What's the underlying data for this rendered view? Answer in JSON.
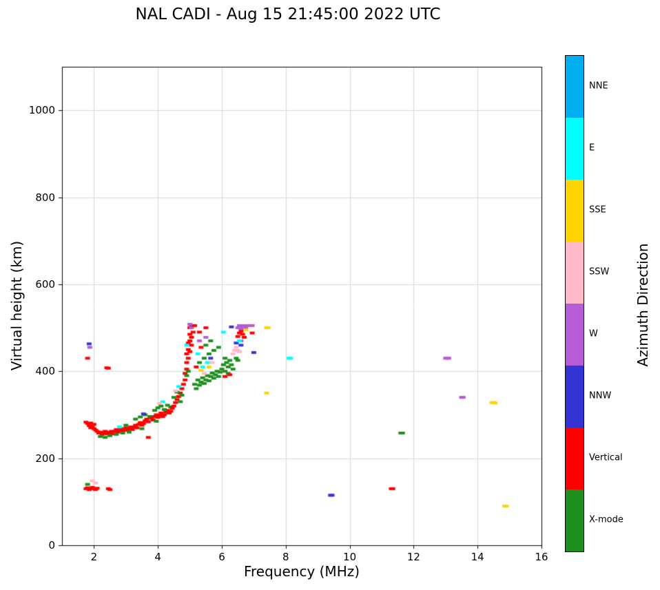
{
  "chart_data": {
    "type": "scatter",
    "title": "NAL CADI - Aug 15 21:45:00 2022 UTC",
    "xlabel": "Frequency (MHz)",
    "ylabel": "Virtual height (km)",
    "colorbar_title": "Azimuth Direction",
    "xlim": [
      1,
      16
    ],
    "ylim": [
      0,
      1100
    ],
    "xticks": [
      2,
      4,
      6,
      8,
      10,
      12,
      14,
      16
    ],
    "yticks": [
      0,
      200,
      400,
      600,
      800,
      1000
    ],
    "grid": true,
    "grid_color": "#d9d9d9",
    "frame_color": "#000000",
    "legend_position": "right-colorbar",
    "categories": [
      {
        "key": "NNE",
        "color": "#00aeef"
      },
      {
        "key": "E",
        "color": "#00ffff"
      },
      {
        "key": "SSE",
        "color": "#ffd400"
      },
      {
        "key": "SSW",
        "color": "#ffb9c9"
      },
      {
        "key": "W",
        "color": "#b55cd6"
      },
      {
        "key": "NNW",
        "color": "#3434d4"
      },
      {
        "key": "Vertical",
        "color": "#fe0000"
      },
      {
        "key": "X-mode",
        "color": "#1e8f1e"
      }
    ],
    "point_fields": [
      "frequency_mhz",
      "virtual_height_km",
      "category_index"
    ],
    "points": [
      [
        1.75,
        283,
        6
      ],
      [
        1.8,
        280,
        6
      ],
      [
        1.85,
        275,
        6
      ],
      [
        1.9,
        270,
        6
      ],
      [
        1.9,
        281,
        6
      ],
      [
        1.95,
        272,
        6
      ],
      [
        2.0,
        268,
        6
      ],
      [
        2.0,
        278,
        6
      ],
      [
        2.05,
        265,
        6
      ],
      [
        2.1,
        262,
        6
      ],
      [
        2.15,
        258,
        6
      ],
      [
        2.2,
        260,
        6
      ],
      [
        2.25,
        255,
        6
      ],
      [
        2.3,
        258,
        6
      ],
      [
        2.35,
        262,
        6
      ],
      [
        2.4,
        256,
        6
      ],
      [
        2.45,
        260,
        6
      ],
      [
        2.5,
        258,
        6
      ],
      [
        2.55,
        262,
        6
      ],
      [
        2.6,
        256,
        6
      ],
      [
        2.2,
        250,
        7
      ],
      [
        2.35,
        248,
        7
      ],
      [
        2.5,
        252,
        7
      ],
      [
        2.65,
        262,
        6
      ],
      [
        2.7,
        266,
        6
      ],
      [
        2.75,
        260,
        6
      ],
      [
        2.8,
        264,
        6
      ],
      [
        2.85,
        268,
        6
      ],
      [
        2.9,
        262,
        6
      ],
      [
        2.95,
        266,
        6
      ],
      [
        3.0,
        270,
        6
      ],
      [
        3.05,
        264,
        6
      ],
      [
        3.1,
        268,
        6
      ],
      [
        3.15,
        272,
        6
      ],
      [
        3.2,
        266,
        6
      ],
      [
        2.7,
        255,
        7
      ],
      [
        2.9,
        258,
        7
      ],
      [
        3.1,
        260,
        7
      ],
      [
        3.0,
        276,
        7
      ],
      [
        2.8,
        272,
        1
      ],
      [
        3.25,
        272,
        6
      ],
      [
        3.3,
        276,
        6
      ],
      [
        3.35,
        270,
        6
      ],
      [
        3.4,
        278,
        6
      ],
      [
        3.45,
        282,
        6
      ],
      [
        3.5,
        276,
        6
      ],
      [
        3.55,
        280,
        6
      ],
      [
        3.6,
        286,
        6
      ],
      [
        3.65,
        290,
        6
      ],
      [
        3.7,
        284,
        6
      ],
      [
        3.7,
        248,
        6
      ],
      [
        3.3,
        290,
        7
      ],
      [
        3.45,
        295,
        7
      ],
      [
        3.6,
        300,
        7
      ],
      [
        3.75,
        296,
        7
      ],
      [
        3.5,
        268,
        7
      ],
      [
        3.55,
        302,
        5
      ],
      [
        3.8,
        292,
        6
      ],
      [
        3.85,
        288,
        6
      ],
      [
        3.9,
        296,
        6
      ],
      [
        3.95,
        300,
        6
      ],
      [
        4.0,
        294,
        6
      ],
      [
        4.05,
        298,
        6
      ],
      [
        4.1,
        304,
        6
      ],
      [
        4.15,
        296,
        6
      ],
      [
        4.2,
        300,
        6
      ],
      [
        4.25,
        306,
        6
      ],
      [
        4.3,
        310,
        6
      ],
      [
        4.35,
        304,
        6
      ],
      [
        4.4,
        308,
        6
      ],
      [
        3.9,
        310,
        7
      ],
      [
        4.0,
        316,
        7
      ],
      [
        4.1,
        320,
        7
      ],
      [
        4.2,
        312,
        7
      ],
      [
        4.3,
        322,
        7
      ],
      [
        4.4,
        318,
        7
      ],
      [
        3.95,
        285,
        7
      ],
      [
        4.15,
        330,
        1
      ],
      [
        4.05,
        326,
        3
      ],
      [
        4.45,
        315,
        6
      ],
      [
        4.5,
        320,
        6
      ],
      [
        4.55,
        328,
        6
      ],
      [
        4.6,
        335,
        6
      ],
      [
        4.65,
        342,
        6
      ],
      [
        4.7,
        350,
        6
      ],
      [
        4.75,
        360,
        6
      ],
      [
        4.8,
        370,
        6
      ],
      [
        4.5,
        340,
        7
      ],
      [
        4.6,
        352,
        7
      ],
      [
        4.7,
        330,
        7
      ],
      [
        4.75,
        345,
        7
      ],
      [
        4.55,
        355,
        3
      ],
      [
        4.65,
        365,
        1
      ],
      [
        4.85,
        380,
        6
      ],
      [
        4.85,
        395,
        6
      ],
      [
        4.9,
        405,
        6
      ],
      [
        4.9,
        420,
        6
      ],
      [
        4.9,
        440,
        6
      ],
      [
        4.95,
        430,
        6
      ],
      [
        4.95,
        450,
        6
      ],
      [
        4.95,
        465,
        6
      ],
      [
        5.0,
        445,
        6
      ],
      [
        5.0,
        470,
        6
      ],
      [
        5.0,
        485,
        6
      ],
      [
        5.0,
        500,
        6
      ],
      [
        5.05,
        460,
        6
      ],
      [
        5.05,
        478,
        6
      ],
      [
        5.05,
        505,
        6
      ],
      [
        5.1,
        490,
        6
      ],
      [
        5.1,
        505,
        6
      ],
      [
        5.05,
        500,
        4
      ],
      [
        5.0,
        508,
        4
      ],
      [
        4.9,
        390,
        7
      ],
      [
        4.95,
        400,
        7
      ],
      [
        4.9,
        460,
        1
      ],
      [
        5.15,
        370,
        7
      ],
      [
        5.2,
        360,
        7
      ],
      [
        5.25,
        380,
        7
      ],
      [
        5.3,
        368,
        7
      ],
      [
        5.35,
        375,
        7
      ],
      [
        5.4,
        385,
        7
      ],
      [
        5.45,
        372,
        7
      ],
      [
        5.5,
        380,
        7
      ],
      [
        5.55,
        390,
        7
      ],
      [
        5.6,
        378,
        7
      ],
      [
        5.65,
        388,
        7
      ],
      [
        5.7,
        396,
        7
      ],
      [
        5.75,
        384,
        7
      ],
      [
        5.8,
        392,
        7
      ],
      [
        5.85,
        400,
        7
      ],
      [
        5.9,
        388,
        7
      ],
      [
        5.95,
        398,
        7
      ],
      [
        6.0,
        405,
        7
      ],
      [
        5.3,
        420,
        7
      ],
      [
        5.45,
        430,
        7
      ],
      [
        5.6,
        440,
        7
      ],
      [
        5.75,
        448,
        7
      ],
      [
        5.9,
        455,
        7
      ],
      [
        5.5,
        460,
        7
      ],
      [
        5.65,
        470,
        7
      ],
      [
        5.2,
        410,
        6
      ],
      [
        5.35,
        455,
        6
      ],
      [
        5.5,
        500,
        6
      ],
      [
        5.15,
        505,
        6
      ],
      [
        5.3,
        490,
        6
      ],
      [
        5.25,
        440,
        1
      ],
      [
        5.55,
        420,
        1
      ],
      [
        5.4,
        410,
        1
      ],
      [
        5.45,
        395,
        3
      ],
      [
        5.7,
        420,
        3
      ],
      [
        5.6,
        410,
        2
      ],
      [
        5.35,
        402,
        2
      ],
      [
        5.5,
        478,
        4
      ],
      [
        5.3,
        470,
        4
      ],
      [
        5.65,
        430,
        5
      ],
      [
        6.05,
        415,
        7
      ],
      [
        6.1,
        400,
        7
      ],
      [
        6.15,
        420,
        7
      ],
      [
        6.2,
        410,
        7
      ],
      [
        6.25,
        425,
        7
      ],
      [
        6.3,
        415,
        7
      ],
      [
        6.35,
        405,
        7
      ],
      [
        6.1,
        430,
        7
      ],
      [
        6.2,
        395,
        7
      ],
      [
        6.3,
        502,
        5
      ],
      [
        6.05,
        490,
        1
      ],
      [
        6.1,
        388,
        6
      ],
      [
        6.25,
        392,
        6
      ],
      [
        6.35,
        440,
        3
      ],
      [
        6.4,
        448,
        3
      ],
      [
        6.5,
        500,
        4
      ],
      [
        6.55,
        505,
        4
      ],
      [
        6.6,
        498,
        4
      ],
      [
        6.65,
        502,
        4
      ],
      [
        6.7,
        505,
        4
      ],
      [
        6.75,
        500,
        4
      ],
      [
        6.6,
        470,
        4
      ],
      [
        6.85,
        505,
        4
      ],
      [
        6.9,
        505,
        4
      ],
      [
        6.95,
        505,
        4
      ],
      [
        6.5,
        480,
        6
      ],
      [
        6.55,
        488,
        6
      ],
      [
        6.6,
        492,
        6
      ],
      [
        6.65,
        485,
        6
      ],
      [
        6.7,
        478,
        6
      ],
      [
        6.95,
        488,
        6
      ],
      [
        6.45,
        455,
        3
      ],
      [
        6.5,
        448,
        3
      ],
      [
        6.55,
        445,
        3
      ],
      [
        6.45,
        465,
        5
      ],
      [
        6.6,
        460,
        5
      ],
      [
        6.75,
        495,
        2
      ],
      [
        6.55,
        470,
        1
      ],
      [
        6.45,
        430,
        7
      ],
      [
        6.5,
        425,
        7
      ],
      [
        7.0,
        443,
        5
      ],
      [
        7.4,
        500,
        2
      ],
      [
        7.45,
        500,
        2
      ],
      [
        7.4,
        350,
        2
      ],
      [
        8.1,
        430,
        1
      ],
      [
        8.15,
        430,
        1
      ],
      [
        9.4,
        115,
        5
      ],
      [
        9.45,
        115,
        5
      ],
      [
        11.3,
        130,
        6
      ],
      [
        11.35,
        130,
        6
      ],
      [
        11.6,
        258,
        7
      ],
      [
        11.65,
        258,
        7
      ],
      [
        13.0,
        430,
        4
      ],
      [
        13.05,
        430,
        4
      ],
      [
        13.1,
        430,
        4
      ],
      [
        13.5,
        340,
        4
      ],
      [
        13.55,
        340,
        4
      ],
      [
        14.45,
        328,
        2
      ],
      [
        14.5,
        328,
        2
      ],
      [
        14.55,
        327,
        2
      ],
      [
        14.85,
        90,
        2
      ],
      [
        14.9,
        90,
        2
      ],
      [
        2.4,
        408,
        6
      ],
      [
        2.45,
        407,
        6
      ],
      [
        1.85,
        463,
        5
      ],
      [
        1.87,
        455,
        4
      ],
      [
        1.8,
        430,
        6
      ],
      [
        1.75,
        130,
        6
      ],
      [
        1.8,
        132,
        6
      ],
      [
        1.85,
        128,
        6
      ],
      [
        1.9,
        130,
        6
      ],
      [
        1.95,
        133,
        6
      ],
      [
        2.0,
        130,
        6
      ],
      [
        2.05,
        128,
        6
      ],
      [
        2.1,
        131,
        6
      ],
      [
        2.45,
        130,
        6
      ],
      [
        2.5,
        128,
        6
      ],
      [
        1.95,
        148,
        3
      ],
      [
        1.8,
        140,
        7
      ],
      [
        2.05,
        143,
        3
      ]
    ]
  }
}
